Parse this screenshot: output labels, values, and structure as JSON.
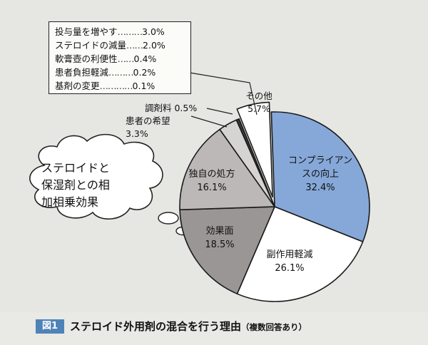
{
  "chart_data": {
    "type": "pie",
    "title": "ステロイド外用剤の混合を行う理由",
    "subtitle": "（複数回答あり）",
    "figure_label": "図1",
    "slices": [
      {
        "label": "コンプライアンスの向上",
        "value": 32.4,
        "value_text": "32.4%",
        "color": "#86a8d8"
      },
      {
        "label": "副作用軽減",
        "value": 26.1,
        "value_text": "26.1%",
        "color": "#ffffff"
      },
      {
        "label": "効果面",
        "value": 18.5,
        "value_text": "18.5%",
        "color": "#9b9696"
      },
      {
        "label": "独自の処方",
        "value": 16.1,
        "value_text": "16.1%",
        "color": "#bcb8b8"
      },
      {
        "label": "患者の希望",
        "value": 3.3,
        "value_text": "3.3%",
        "color": "#d6d3d3"
      },
      {
        "label": "調剤料",
        "value": 0.5,
        "value_text": "0.5%",
        "color": "#3a3a3a"
      },
      {
        "label": "その他",
        "value": 5.7,
        "value_text": "5.7%",
        "color": "#ffffff"
      }
    ],
    "other_breakdown": [
      {
        "label": "投与量を増やす",
        "value": 3.0,
        "value_text": "3.0%"
      },
      {
        "label": "ステロイドの減量",
        "value": 2.0,
        "value_text": "2.0%"
      },
      {
        "label": "軟膏壺の利便性",
        "value": 0.4,
        "value_text": "0.4%"
      },
      {
        "label": "患者負担軽減",
        "value": 0.2,
        "value_text": "0.2%"
      },
      {
        "label": "基剤の変更",
        "value": 0.1,
        "value_text": "0.1%"
      }
    ]
  },
  "legend_rows": [
    {
      "label": "投与量を増やす",
      "dots": "………",
      "value": "3.0%"
    },
    {
      "label": "ステロイドの減量",
      "dots": "……",
      "value": "2.0%"
    },
    {
      "label": "軟膏壺の利便性",
      "dots": "……",
      "value": "0.4%"
    },
    {
      "label": "患者負担軽減",
      "dots": "………",
      "value": "0.2%"
    },
    {
      "label": "基剤の変更",
      "dots": "…………",
      "value": "0.1%"
    }
  ],
  "labels": {
    "compliance": "コンプライアン\nスの向上\n32.4%",
    "side_effect": "副作用軽減\n26.1%",
    "effect": "効果面\n18.5%",
    "original": "独自の処方\n16.1%",
    "patient": "患者の希望\n3.3%",
    "dispensing": "調剤料 0.5%",
    "other": "その他\n5.7%"
  },
  "note_bubble": "ステロイドと\n保湿剤との相\n加相乗効果"
}
